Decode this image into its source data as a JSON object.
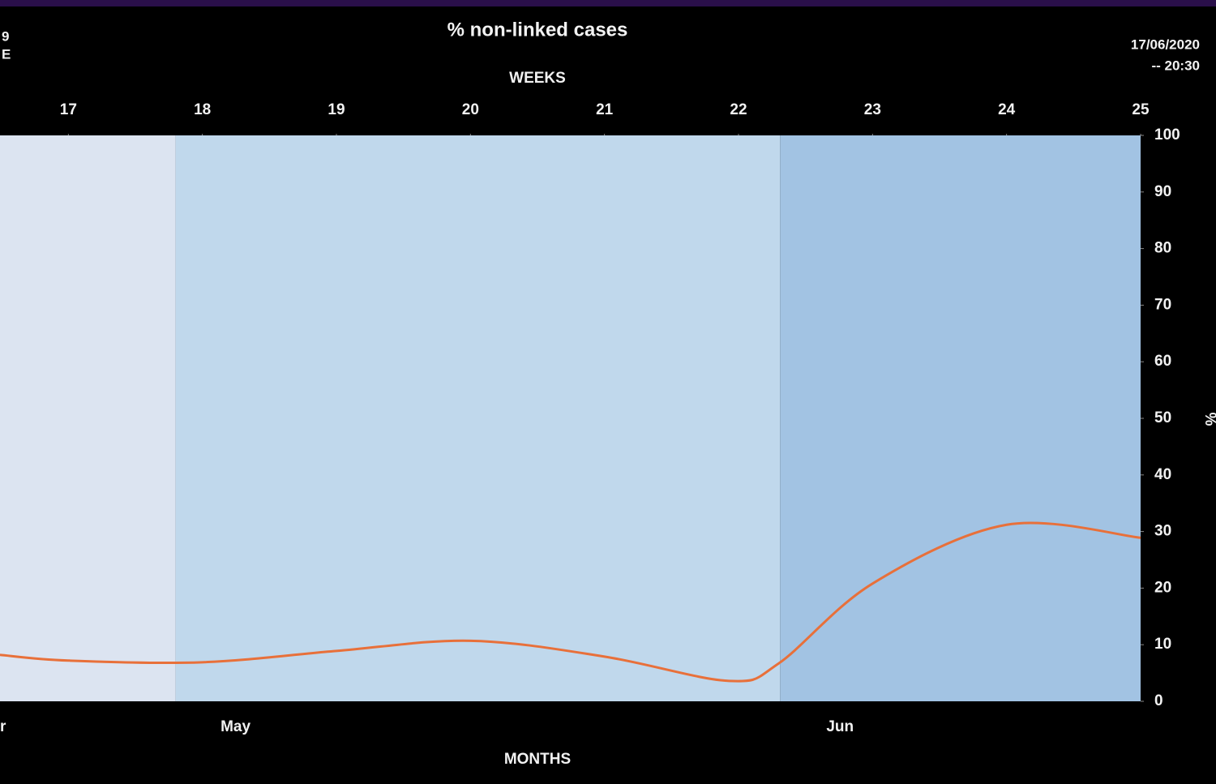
{
  "chart_data": {
    "type": "line",
    "title": "% non-linked cases",
    "left_fragment": [
      "9",
      "E"
    ],
    "timestamp": [
      "17/06/2020",
      "-- 20:30"
    ],
    "x2_label": "WEEKS",
    "x_label": "MONTHS",
    "y_label": "%",
    "x": [
      16.49,
      17,
      18,
      19,
      20,
      21,
      21.93,
      22.3,
      23,
      24,
      25
    ],
    "series": [
      {
        "name": "% non-linked cases",
        "color": "#e8703a",
        "values": [
          8.2,
          7.2,
          6.9,
          8.9,
          10.7,
          7.9,
          3.6,
          6.7,
          20.8,
          31.2,
          28.9
        ]
      }
    ],
    "bands": [
      {
        "label": "r",
        "from": 16.49,
        "to": 17.8,
        "color": "#dce4f1"
      },
      {
        "label": "May",
        "from": 17.8,
        "to": 22.31,
        "color": "#c0d8ec"
      },
      {
        "label": "Jun",
        "from": 22.31,
        "to": 25,
        "color": "#a2c3e3"
      }
    ],
    "xlim": [
      16.49,
      25
    ],
    "xticks": [
      17,
      18,
      19,
      20,
      21,
      22,
      23,
      24,
      25
    ],
    "ylim": [
      0,
      100
    ],
    "yticks": [
      0,
      10,
      20,
      30,
      40,
      50,
      60,
      70,
      80,
      90,
      100
    ]
  }
}
